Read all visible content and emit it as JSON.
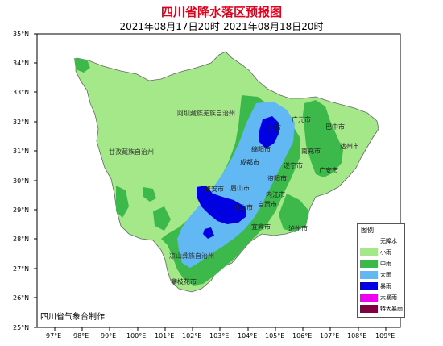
{
  "title": "四川省降水落区预报图",
  "subtitle": "2021年08月17日20时-2021年08月18日20时",
  "credit": "四川省气象台制作",
  "lat_labels": [
    "35°N",
    "34°N",
    "33°N",
    "32°N",
    "31°N",
    "30°N",
    "29°N",
    "28°N",
    "27°N",
    "26°N",
    "25°N"
  ],
  "lon_labels": [
    "97°E",
    "98°E",
    "99°E",
    "100°E",
    "101°E",
    "102°E",
    "103°E",
    "104°E",
    "105°E",
    "106°E",
    "107°E",
    "108°E",
    "109°E"
  ],
  "regions": {
    "aba": "阿坝藏族羌族自治州",
    "ganzi": "甘孜藏族自治州",
    "liangshan": "凉山彝族自治州"
  },
  "cities": {
    "guangyuan": "广元市",
    "bazhong": "巴中市",
    "dazhou": "达州市",
    "mianyang": "绵阳市",
    "nanchong": "南充市",
    "chengdu": "成都市",
    "suining": "遂宁市",
    "guangan": "广安市",
    "yaan": "雅安市",
    "meishan": "眉山市",
    "ziyang": "资阳市",
    "neijiang": "内江市",
    "zigong": "自贡市",
    "leshan": "乐山市",
    "yibin": "宜宾市",
    "luzhou": "泸州市",
    "panzhihua": "攀枝花市",
    "deyang": "德阳市",
    "zhizhong": "州市"
  },
  "legend": {
    "title": "图例",
    "items": [
      {
        "label": "无降水",
        "color": "#ffffff"
      },
      {
        "label": "小雨",
        "color": "#a5e88a"
      },
      {
        "label": "中雨",
        "color": "#3db94b"
      },
      {
        "label": "大雨",
        "color": "#62b8f2"
      },
      {
        "label": "暴雨",
        "color": "#0000e0"
      },
      {
        "label": "大暴雨",
        "color": "#f000f0"
      },
      {
        "label": "特大暴雨",
        "color": "#800040"
      }
    ]
  }
}
